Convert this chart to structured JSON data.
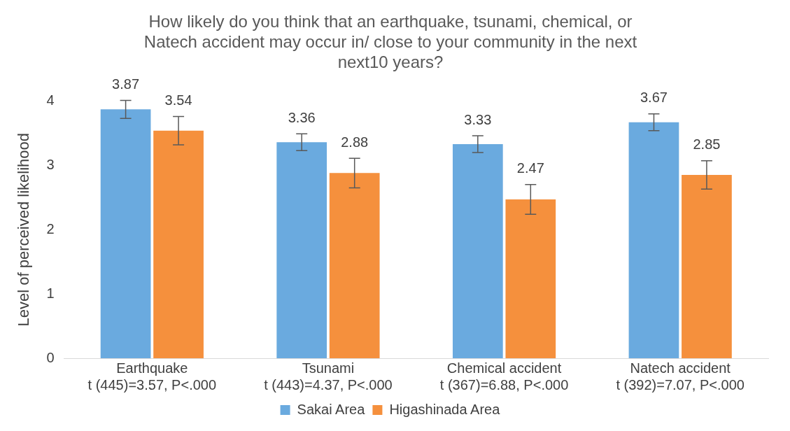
{
  "chart_data": {
    "type": "bar",
    "title": "How likely do you think that an earthquake, tsunami, chemical, or\nNatech accident may occur in/ close to your community in the next\nnext10 years?",
    "ylabel": "Level of perceived likelihood",
    "categories": [
      "Earthquake\nt (445)=3.57, P<.000",
      "Tsunami\nt (443)=4.37, P<.000",
      "Chemical accident\nt (367)=6.88, P<.000",
      "Natech accident\nt (392)=7.07, P<.000"
    ],
    "series": [
      {
        "name": "Sakai Area",
        "color": "#6aaadf",
        "values": [
          3.87,
          3.36,
          3.33,
          3.67
        ],
        "errors": [
          0.14,
          0.13,
          0.13,
          0.13
        ]
      },
      {
        "name": "Higashinada Area",
        "color": "#f5903d",
        "values": [
          3.54,
          2.88,
          2.47,
          2.85
        ],
        "errors": [
          0.22,
          0.23,
          0.23,
          0.22
        ]
      }
    ],
    "ylim": [
      0,
      4
    ],
    "yticks": [
      0,
      1,
      2,
      3,
      4
    ],
    "grid": false,
    "legend": "bottom",
    "data_labels": true
  }
}
